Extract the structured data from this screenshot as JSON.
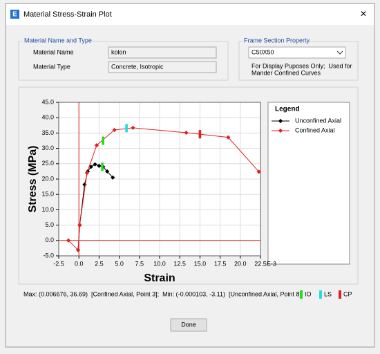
{
  "window": {
    "icon": "E",
    "title": "Material Stress-Strain Plot",
    "close": "✕"
  },
  "material_group": {
    "title": "Material Name and Type",
    "name_label": "Material Name",
    "name_value": "kolon",
    "type_label": "Material Type",
    "type_value": "Concrete, Isotropic"
  },
  "section_group": {
    "title": "Frame Section Property",
    "selected": "C50X50",
    "note_lines": [
      "For Display Puposes Only;  Used for",
      "Mander Confined Curves"
    ]
  },
  "chart_data": {
    "type": "line",
    "xlabel": "Strain",
    "ylabel": "Stress (MPa)",
    "x_multiplier_label": "E-3",
    "xlim": [
      -2.5,
      22.5
    ],
    "ylim": [
      -5,
      45
    ],
    "xticks": [
      2.5,
      {
        "value": -2.5,
        "label": "-2.5"
      },
      {
        "value": 0,
        "label": "0.0"
      },
      {
        "value": 5,
        "label": "5.0"
      },
      7.5,
      {
        "value": 10,
        "label": "10.0"
      },
      12.5,
      {
        "value": 15,
        "label": "15.0"
      },
      17.5,
      {
        "value": 20,
        "label": "20.0"
      },
      22.5
    ],
    "yticks": [
      {
        "value": -5,
        "label": "-5.0"
      },
      {
        "value": 0,
        "label": "0.0"
      },
      {
        "value": 5,
        "label": "5.0"
      },
      {
        "value": 10,
        "label": "10.0"
      },
      {
        "value": 15,
        "label": "15.0"
      },
      {
        "value": 20,
        "label": "20.0"
      },
      {
        "value": 25,
        "label": "25.0"
      },
      {
        "value": 30,
        "label": "30.0"
      },
      {
        "value": 35,
        "label": "35.0"
      },
      {
        "value": 40,
        "label": "40.0"
      },
      {
        "value": 45,
        "label": "45.0"
      }
    ],
    "grid": true,
    "zero_axis_color": "#e02020",
    "legend": {
      "title": "Legend"
    },
    "series": [
      {
        "name": "Unconfined Axial",
        "color": "#000000",
        "x": [
          -0.1,
          0.1,
          0.7,
          1.1,
          1.5,
          2.0,
          2.5,
          3.0,
          3.5,
          4.2
        ],
        "values": [
          -3.1,
          5,
          18.2,
          22.5,
          24,
          24.8,
          24.3,
          24,
          22.5,
          20.5
        ]
      },
      {
        "name": "Confined Axial",
        "color": "#e02020",
        "x": [
          -1.3,
          -0.1,
          0.1,
          1.0,
          2.2,
          4.4,
          6.7,
          13.3,
          18.5,
          22.3
        ],
        "values": [
          0,
          -3.1,
          5,
          22,
          31,
          36,
          36.7,
          35.1,
          33.6,
          22.4
        ]
      }
    ],
    "performance_levels": [
      {
        "name": "IO",
        "color": "#22dd22",
        "x": [
          2.9,
          3.0
        ],
        "values": [
          24,
          32.5
        ]
      },
      {
        "name": "LS",
        "color": "#22dddd",
        "x": [
          5.9
        ],
        "values": [
          36.6
        ]
      },
      {
        "name": "CP",
        "color": "#e02020",
        "x": [
          15.0
        ],
        "values": [
          34.6
        ]
      }
    ]
  },
  "status": "Max: (0.006676, 36.69)  [Confined Axial, Point 3];  Min: (-0.000103, -3.11)  [Unconfined Axial, Point 8]",
  "buttons": {
    "done": "Done"
  }
}
